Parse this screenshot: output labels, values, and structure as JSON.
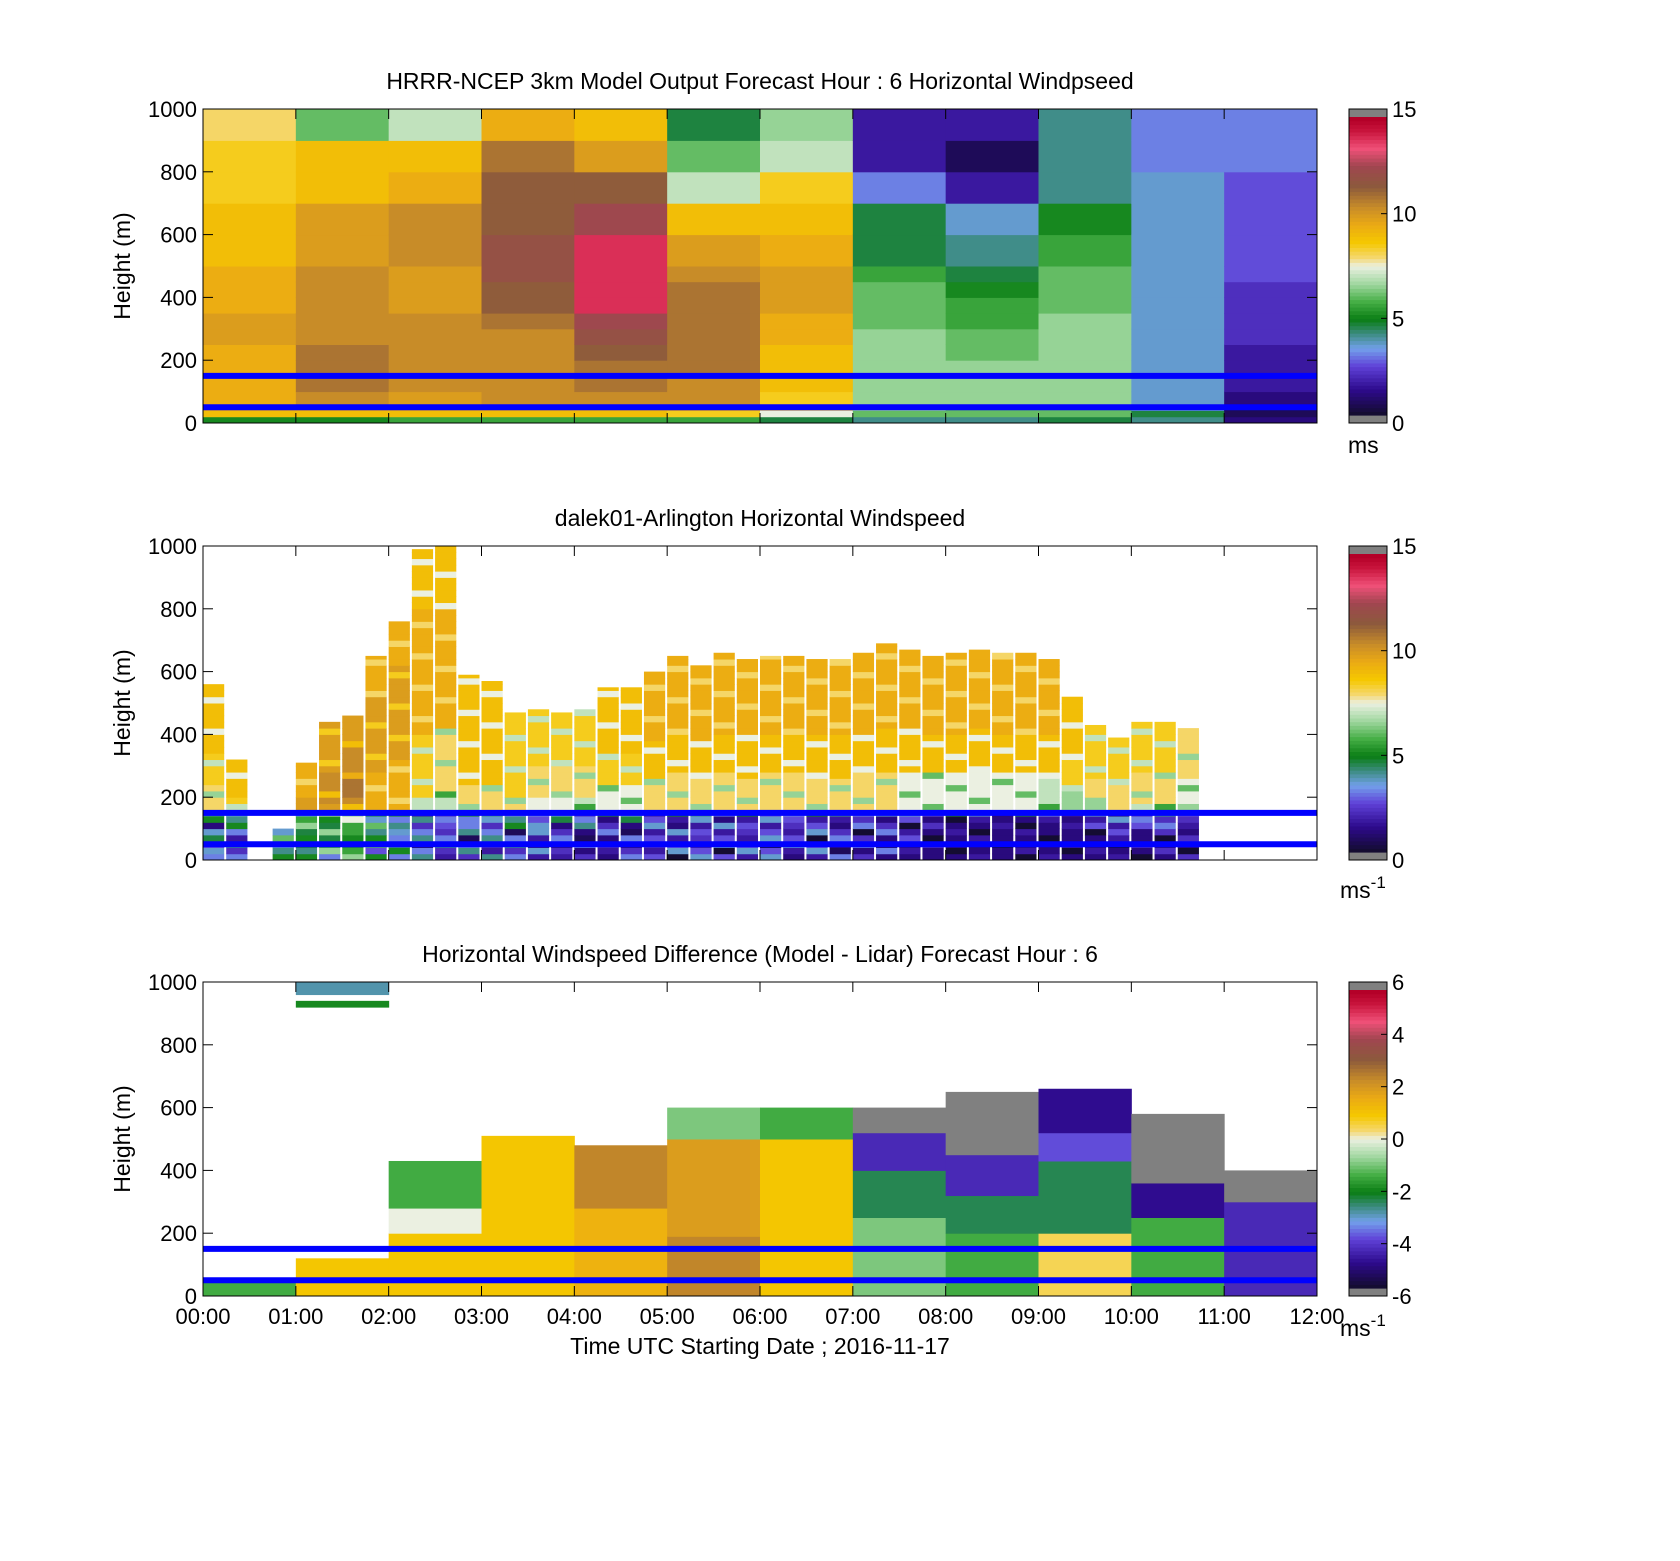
{
  "figure": {
    "xlabel": "Time UTC  Starting Date ; 2016-11-17",
    "xticks": [
      "00:00",
      "01:00",
      "02:00",
      "03:00",
      "04:00",
      "05:00",
      "06:00",
      "07:00",
      "08:00",
      "09:00",
      "10:00",
      "11:00",
      "12:00"
    ],
    "yticks": [
      "0",
      "200",
      "400",
      "600",
      "800",
      "1000"
    ],
    "ylabel": "Height (m)"
  },
  "chart_data": [
    {
      "type": "heatmap",
      "title": "HRRR-NCEP 3km Model Output   Forecast Hour : 6 Horizontal Windpseed",
      "ylabel": "Height (m)",
      "xlabel": "",
      "xlim_hours": [
        0,
        12
      ],
      "ylim": [
        0,
        1000
      ],
      "colorbar": {
        "min": 0,
        "max": 15,
        "ticks": [
          "0",
          "5",
          "10",
          "15"
        ],
        "unit_base": "ms",
        "unit_sup": ""
      },
      "reference_lines_m": [
        50,
        150
      ],
      "rows_m": [
        0,
        20,
        40,
        60,
        100,
        150,
        200,
        250,
        300,
        350,
        400,
        450,
        500,
        600,
        700,
        800,
        900,
        1000
      ],
      "columns_hours": [
        0,
        1,
        2,
        3,
        4,
        5,
        6,
        7,
        8,
        9,
        10,
        11,
        12
      ],
      "values": [
        [
          5,
          9,
          9.5,
          9.5,
          9.5,
          9.5,
          9.5,
          10,
          10,
          9.5,
          9.5,
          9.5,
          9,
          9,
          8.5,
          8.5,
          8
        ],
        [
          5,
          9,
          9.5,
          10.5,
          11,
          11,
          11,
          10.5,
          10.5,
          10.5,
          10.5,
          10.5,
          10,
          10,
          9,
          9,
          6
        ],
        [
          5.5,
          9,
          9.5,
          10,
          10.5,
          10.5,
          10.5,
          10.5,
          10.5,
          10,
          10,
          10,
          10.5,
          10.5,
          9.5,
          9,
          7
        ],
        [
          5.5,
          9,
          9.5,
          10.5,
          10.5,
          10.5,
          10.5,
          10.5,
          11,
          11.5,
          11.5,
          12,
          12,
          11.5,
          11.5,
          11,
          9.5
        ],
        [
          5.5,
          9,
          9.5,
          10.5,
          11,
          11,
          11.5,
          12,
          12.5,
          14,
          14,
          14,
          14,
          12.5,
          11.5,
          10,
          9
        ],
        [
          5.5,
          8.5,
          9.5,
          10.5,
          10.5,
          11,
          11,
          11,
          11,
          11,
          11,
          10.5,
          10,
          9,
          7,
          6,
          4.5
        ],
        [
          4.5,
          7.5,
          8,
          8.5,
          9,
          9,
          9,
          9.5,
          9.5,
          10,
          10,
          10,
          9.5,
          9,
          8.5,
          7,
          6.5
        ],
        [
          4,
          6,
          6.5,
          6.5,
          6.5,
          6.5,
          6.5,
          6.5,
          6,
          6,
          6,
          5.5,
          4.5,
          4.5,
          3,
          1.5,
          1.5
        ],
        [
          4,
          6,
          6,
          6.5,
          6.5,
          6.5,
          6,
          6,
          5.5,
          5.5,
          5,
          4.5,
          4,
          3.5,
          1.5,
          0.5,
          1.5
        ],
        [
          4.5,
          6,
          6,
          6.5,
          6.5,
          6.5,
          6.5,
          6.5,
          6.5,
          6,
          6,
          6,
          5.5,
          5,
          4,
          4,
          4
        ],
        [
          4,
          4.5,
          3.5,
          3.5,
          3.5,
          3.5,
          3.5,
          3.5,
          3.5,
          3.5,
          3.5,
          3.5,
          3.5,
          3.5,
          3.5,
          3,
          3
        ],
        [
          1,
          0.5,
          0.5,
          1,
          1.5,
          1.5,
          1.5,
          2,
          2,
          2,
          2,
          2.5,
          2.5,
          2.5,
          2.5,
          3,
          3
        ]
      ]
    },
    {
      "type": "heatmap",
      "title": "dalek01-Arlington  Horizontal Windspeed",
      "ylabel": "Height (m)",
      "xlabel": "",
      "xlim_hours": [
        0,
        12
      ],
      "ylim": [
        0,
        1000
      ],
      "colorbar": {
        "min": 0,
        "max": 15,
        "ticks": [
          "0",
          "5",
          "10",
          "15"
        ],
        "unit_base": "ms",
        "unit_sup": "-1"
      },
      "reference_lines_m": [
        50,
        150
      ],
      "bin_width_hours": 0.25,
      "column_tops_m": [
        560,
        320,
        0,
        100,
        310,
        440,
        460,
        650,
        760,
        990,
        1000,
        590,
        570,
        470,
        480,
        470,
        480,
        550,
        550,
        600,
        650,
        620,
        660,
        640,
        650,
        650,
        640,
        640,
        660,
        690,
        670,
        650,
        660,
        670,
        660,
        660,
        640,
        520,
        430,
        390,
        440,
        440,
        420
      ],
      "column_profiles": [
        [
          9,
          9,
          8.5,
          8,
          7.5
        ],
        [
          9,
          9,
          8.5,
          8,
          7
        ],
        [
          9,
          9,
          8.5,
          8,
          7
        ],
        [
          9,
          9.5,
          9,
          8.5,
          8
        ],
        [
          9.5,
          9.5,
          10,
          9.5,
          9
        ],
        [
          10,
          10,
          10.5,
          10,
          9.5
        ],
        [
          10,
          10.5,
          11,
          10.5,
          9.5
        ],
        [
          9.5,
          10,
          10,
          9.5,
          9
        ],
        [
          9.5,
          10,
          10,
          9.5,
          8
        ],
        [
          9,
          9.5,
          9.5,
          8.5,
          7
        ],
        [
          9,
          9.5,
          9.5,
          8,
          7
        ],
        [
          9,
          9,
          9,
          8,
          7
        ],
        [
          9,
          9,
          9,
          8,
          7
        ],
        [
          8.5,
          8.5,
          8.5,
          8,
          7
        ],
        [
          8.5,
          8.5,
          8,
          7.5,
          6.5
        ],
        [
          8.5,
          8.5,
          8,
          7.5,
          6
        ],
        [
          8.5,
          8.5,
          8,
          7,
          6
        ],
        [
          9,
          9,
          8.5,
          7.5,
          6
        ],
        [
          9,
          9,
          8.5,
          7.5,
          6
        ],
        [
          9.5,
          9.5,
          9,
          8,
          6.5
        ],
        [
          9.5,
          9.5,
          9,
          8,
          6.5
        ],
        [
          9.5,
          9.5,
          9,
          8,
          6.5
        ],
        [
          9.5,
          9.5,
          9,
          8,
          6.5
        ],
        [
          9.5,
          9.5,
          9,
          8,
          6.5
        ],
        [
          9.5,
          9.5,
          9,
          8,
          6.5
        ],
        [
          9.5,
          9.5,
          9,
          8,
          6.5
        ],
        [
          9.5,
          9.5,
          9,
          8,
          6.5
        ],
        [
          9.5,
          9.5,
          9,
          8,
          6
        ],
        [
          9.5,
          9.5,
          9,
          8,
          6
        ],
        [
          9.5,
          9.5,
          9,
          8,
          6
        ],
        [
          9.5,
          9.5,
          9,
          7.5,
          5.5
        ],
        [
          9.5,
          9.5,
          9,
          7.5,
          5
        ],
        [
          9.5,
          9.5,
          9,
          7.5,
          4.5
        ],
        [
          9.5,
          9.5,
          9,
          7.5,
          4.5
        ],
        [
          9.5,
          9.5,
          9,
          7.5,
          4.5
        ],
        [
          9.5,
          9.5,
          9,
          7.5,
          4.5
        ],
        [
          9.5,
          9.5,
          9,
          7,
          4.5
        ],
        [
          9,
          9,
          8.5,
          6.5,
          4.5
        ],
        [
          8.5,
          8.5,
          8,
          6.5,
          4.5
        ],
        [
          8.5,
          8.5,
          8,
          6.5,
          4.5
        ],
        [
          8.5,
          8.5,
          8,
          7,
          5
        ],
        [
          8.5,
          8.5,
          8,
          7,
          5
        ],
        [
          8,
          8,
          7.5,
          6.5,
          5
        ]
      ]
    },
    {
      "type": "heatmap",
      "title": "Horizontal Windspeed Difference (Model - Lidar) Forecast Hour : 6",
      "ylabel": "Height (m)",
      "xlabel": "Time UTC  Starting Date ; 2016-11-17",
      "xlim_hours": [
        0,
        12
      ],
      "ylim": [
        0,
        1000
      ],
      "colorbar": {
        "min": -6,
        "max": 6,
        "ticks": [
          "-6",
          "-4",
          "-2",
          "0",
          "2",
          "4",
          "6"
        ],
        "unit_base": "ms",
        "unit_sup": "-1"
      },
      "reference_lines_m": [
        50,
        150
      ],
      "columns": [
        {
          "hours": [
            0,
            1
          ],
          "top_m": 50,
          "bands": [
            [
              0,
              50,
              -1.5
            ]
          ]
        },
        {
          "hours": [
            1,
            2
          ],
          "top_m": 1000,
          "bands": [
            [
              0,
              120,
              1
            ],
            [
              920,
              940,
              -2
            ],
            [
              960,
              1000,
              -3
            ]
          ]
        },
        {
          "hours": [
            2,
            3
          ],
          "top_m": 430,
          "bands": [
            [
              0,
              200,
              1
            ],
            [
              200,
              280,
              0
            ],
            [
              280,
              430,
              -1.5
            ]
          ]
        },
        {
          "hours": [
            3,
            4
          ],
          "top_m": 510,
          "bands": [
            [
              0,
              510,
              1
            ]
          ]
        },
        {
          "hours": [
            4,
            5
          ],
          "top_m": 480,
          "bands": [
            [
              0,
              280,
              1.5
            ],
            [
              280,
              480,
              2.5
            ]
          ]
        },
        {
          "hours": [
            5,
            6
          ],
          "top_m": 600,
          "bands": [
            [
              0,
              190,
              2.5
            ],
            [
              190,
              500,
              2
            ],
            [
              500,
              600,
              -1
            ]
          ]
        },
        {
          "hours": [
            6,
            7
          ],
          "top_m": 600,
          "bands": [
            [
              0,
              500,
              1
            ],
            [
              500,
              600,
              -1.5
            ]
          ]
        },
        {
          "hours": [
            7,
            8
          ],
          "top_m": 600,
          "bands": [
            [
              0,
              250,
              -1
            ],
            [
              250,
              400,
              -2.5
            ],
            [
              400,
              520,
              -4.5
            ],
            [
              520,
              600,
              "nan"
            ]
          ]
        },
        {
          "hours": [
            8,
            9
          ],
          "top_m": 650,
          "bands": [
            [
              0,
              200,
              -1.5
            ],
            [
              200,
              320,
              -2.5
            ],
            [
              320,
              450,
              -4.5
            ],
            [
              450,
              650,
              "nan"
            ]
          ]
        },
        {
          "hours": [
            9,
            10
          ],
          "top_m": 660,
          "bands": [
            [
              0,
              200,
              0.5
            ],
            [
              200,
              430,
              -2.5
            ],
            [
              430,
              520,
              -4
            ],
            [
              520,
              660,
              -5
            ]
          ]
        },
        {
          "hours": [
            10,
            11
          ],
          "top_m": 580,
          "bands": [
            [
              0,
              250,
              -1.5
            ],
            [
              250,
              360,
              -5
            ],
            [
              360,
              580,
              "nan"
            ]
          ]
        },
        {
          "hours": [
            11,
            12
          ],
          "top_m": 400,
          "bands": [
            [
              0,
              300,
              -4.5
            ],
            [
              300,
              400,
              "nan"
            ]
          ]
        }
      ]
    }
  ]
}
